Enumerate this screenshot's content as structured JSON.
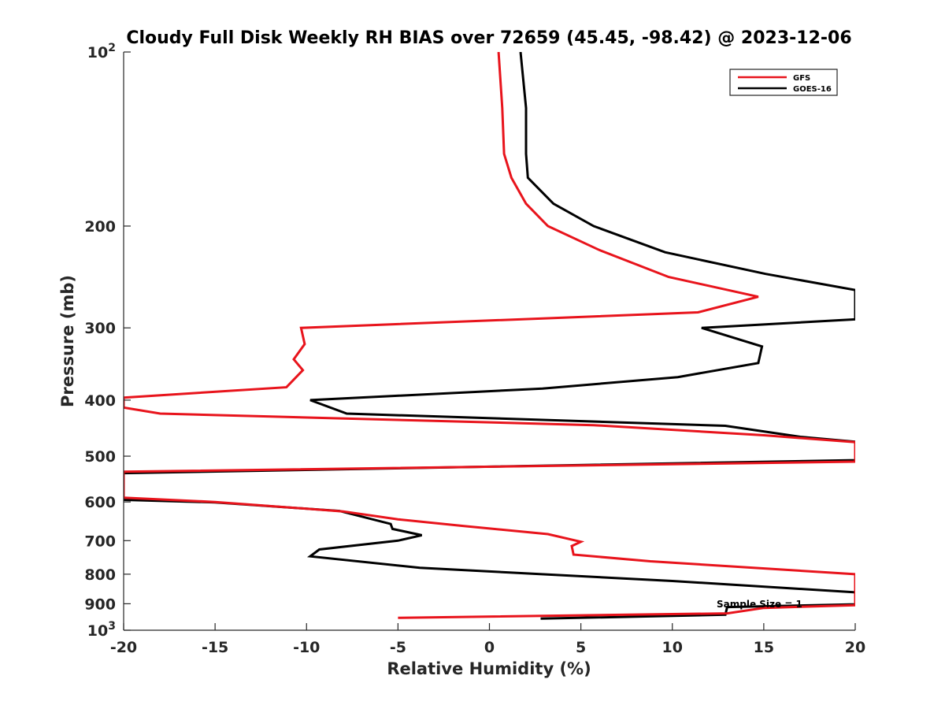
{
  "chart_data": {
    "type": "line",
    "title": "Cloudy Full Disk Weekly RH BIAS over 72659 (45.45, -98.42) @ 2023-12-06",
    "xlabel": "Relative Humidity (%)",
    "ylabel": "Pressure (mb)",
    "xlim": [
      -20,
      20
    ],
    "ylim": [
      100,
      1000
    ],
    "y_scale": "log",
    "y_reversed": true,
    "x_ticks": [
      "-20",
      "-15",
      "-10",
      "-5",
      "0",
      "5",
      "10",
      "15",
      "20"
    ],
    "y_ticks": [
      {
        "value": 100,
        "base": "10",
        "exp": "2"
      },
      {
        "value": 200,
        "label": "200"
      },
      {
        "value": 300,
        "label": "300"
      },
      {
        "value": 400,
        "label": "400"
      },
      {
        "value": 500,
        "label": "500"
      },
      {
        "value": 600,
        "label": "600"
      },
      {
        "value": 700,
        "label": "700"
      },
      {
        "value": 800,
        "label": "800"
      },
      {
        "value": 900,
        "label": "900"
      },
      {
        "value": 1000,
        "base": "10",
        "exp": "3"
      }
    ],
    "legend_position": "top-right",
    "annotation": "Sample Size = 1",
    "series": [
      {
        "name": "GFS",
        "color": "#e8141c",
        "points": [
          [
            0.5,
            100
          ],
          [
            0.7,
            125
          ],
          [
            0.8,
            150
          ],
          [
            1.2,
            165
          ],
          [
            2.0,
            183
          ],
          [
            3.2,
            200
          ],
          [
            6.0,
            220
          ],
          [
            9.8,
            245
          ],
          [
            14.7,
            265
          ],
          [
            11.4,
            282
          ],
          [
            -10.3,
            300
          ],
          [
            -10.1,
            320
          ],
          [
            -10.7,
            340
          ],
          [
            -10.2,
            355
          ],
          [
            -11.1,
            380
          ],
          [
            -20.0,
            396
          ],
          [
            -20.0,
            412
          ],
          [
            -18.0,
            422
          ],
          [
            5.7,
            442
          ],
          [
            15.0,
            460
          ],
          [
            20.0,
            473
          ],
          [
            20.0,
            511
          ],
          [
            -20.0,
            532
          ],
          [
            -20.0,
            590
          ],
          [
            -15.0,
            600
          ],
          [
            -8.0,
            623
          ],
          [
            -5.0,
            643
          ],
          [
            -1.5,
            660
          ],
          [
            3.2,
            682
          ],
          [
            5.0,
            703
          ],
          [
            4.5,
            715
          ],
          [
            4.6,
            740
          ],
          [
            8.8,
            760
          ],
          [
            20.0,
            800
          ],
          [
            20.0,
            905
          ],
          [
            15.0,
            915
          ],
          [
            13.0,
            935
          ],
          [
            -5.0,
            952
          ]
        ]
      },
      {
        "name": "GOES-16",
        "color": "#000000",
        "points": [
          [
            1.7,
            100
          ],
          [
            2.0,
            125
          ],
          [
            2.0,
            150
          ],
          [
            2.1,
            165
          ],
          [
            3.5,
            183
          ],
          [
            5.7,
            200
          ],
          [
            9.6,
            222
          ],
          [
            15.1,
            242
          ],
          [
            20.0,
            258
          ],
          [
            20.0,
            290
          ],
          [
            11.6,
            300
          ],
          [
            14.9,
            323
          ],
          [
            14.7,
            345
          ],
          [
            10.3,
            365
          ],
          [
            2.9,
            382
          ],
          [
            -9.8,
            400
          ],
          [
            -7.8,
            422
          ],
          [
            12.9,
            443
          ],
          [
            17.0,
            463
          ],
          [
            20.0,
            472
          ],
          [
            20.0,
            508
          ],
          [
            -20.0,
            535
          ],
          [
            -20.0,
            595
          ],
          [
            -15.0,
            601
          ],
          [
            -8.2,
            622
          ],
          [
            -5.4,
            655
          ],
          [
            -5.3,
            668
          ],
          [
            -3.7,
            685
          ],
          [
            -5.0,
            700
          ],
          [
            -9.3,
            725
          ],
          [
            -9.8,
            745
          ],
          [
            -3.8,
            780
          ],
          [
            10.0,
            822
          ],
          [
            20.0,
            860
          ],
          [
            20.0,
            902
          ],
          [
            13.0,
            912
          ],
          [
            12.9,
            940
          ],
          [
            2.8,
            955
          ]
        ]
      }
    ]
  }
}
